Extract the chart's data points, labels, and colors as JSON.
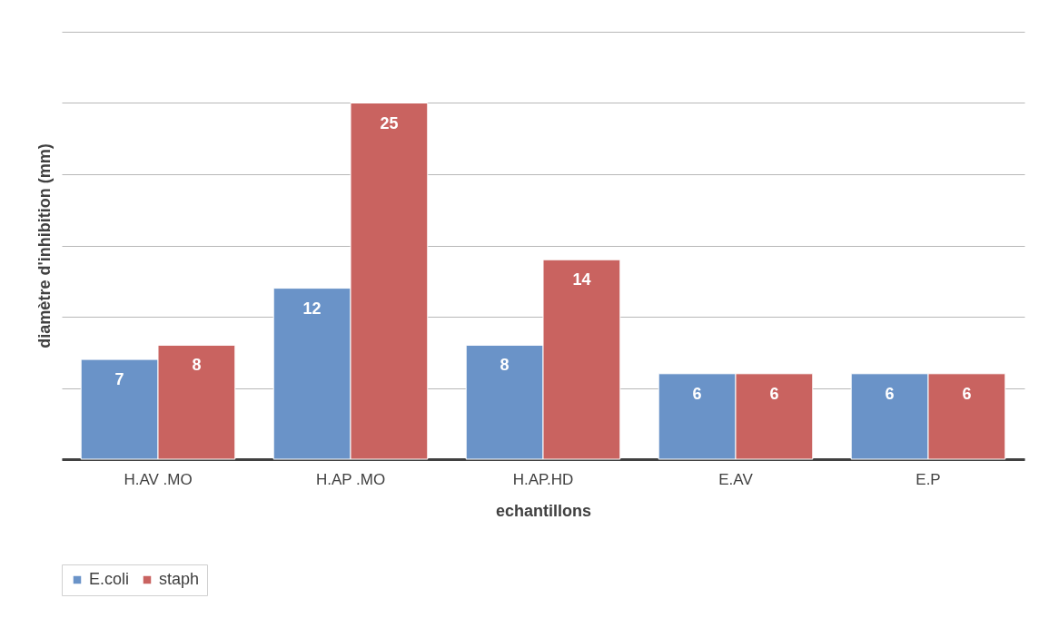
{
  "chart_data": {
    "type": "bar",
    "xlabel": "echantillons",
    "ylabel": "diamètre d'inhibition (mm)",
    "categories": [
      "H.AV .MO",
      "H.AP .MO",
      "H.AP.HD",
      "E.AV",
      "E.P"
    ],
    "series": [
      {
        "name": "E.coli",
        "color": "#6a93c8",
        "values": [
          7,
          12,
          8,
          6,
          6
        ]
      },
      {
        "name": "staph",
        "color": "#c96360",
        "values": [
          8,
          25,
          14,
          6,
          6
        ]
      }
    ],
    "ylim": [
      0,
      30
    ],
    "yticks": [
      {
        "value": 0,
        "label": null
      },
      {
        "value": 5,
        "label": null
      },
      {
        "value": 10,
        "label": null
      },
      {
        "value": 15,
        "label": null
      },
      {
        "value": 20,
        "label": null
      },
      {
        "value": 25,
        "label": null
      },
      {
        "value": 30,
        "label": null
      }
    ],
    "tick_labels": "x",
    "grid": "y",
    "legend": "bottom",
    "data_labels": true
  }
}
